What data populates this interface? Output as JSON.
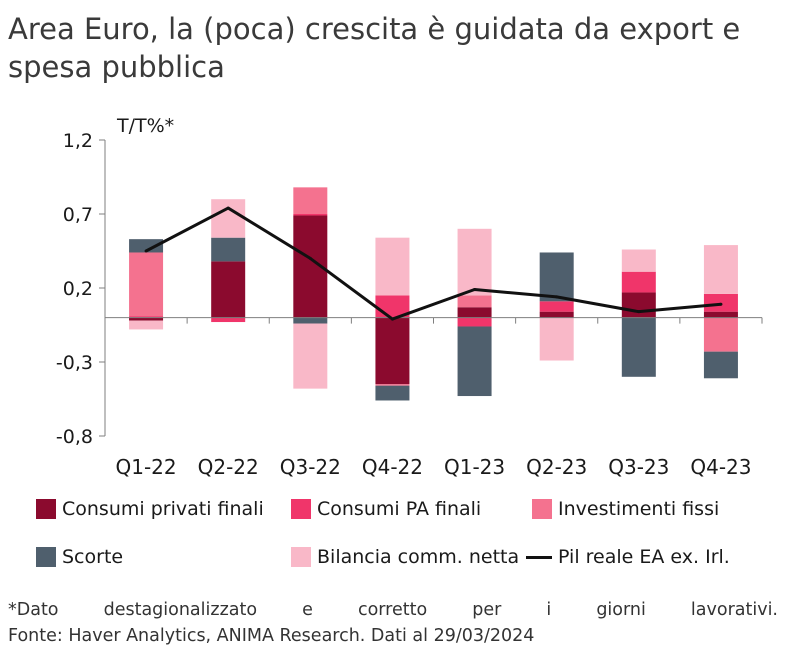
{
  "title_lines": [
    "Area Euro, la (poca) crescita è guidata da export e",
    "spesa pubblica"
  ],
  "chart_data": {
    "type": "bar",
    "stacked": true,
    "ylabel": "T/T%*",
    "ylim": [
      -0.8,
      1.2
    ],
    "yticks": [
      "1,2",
      "0,7",
      "0,2",
      "-0,3",
      "-0,8"
    ],
    "ytick_values": [
      1.2,
      0.7,
      0.2,
      -0.3,
      -0.8
    ],
    "categories": [
      "Q1-22",
      "Q2-22",
      "Q3-22",
      "Q4-22",
      "Q1-23",
      "Q2-23",
      "Q3-23",
      "Q4-23"
    ],
    "series": [
      {
        "name": "Consumi privati finali",
        "color": "#8b0a2e",
        "values": [
          -0.02,
          0.38,
          0.69,
          -0.45,
          0.07,
          0.04,
          0.17,
          0.04
        ]
      },
      {
        "name": "Consumi PA finali",
        "color": "#f0356a",
        "values": [
          0.01,
          -0.03,
          0.01,
          0.15,
          -0.06,
          0.07,
          0.14,
          0.12
        ]
      },
      {
        "name": "Investimenti fissi",
        "color": "#f4728f",
        "values": [
          0.43,
          0.0,
          0.18,
          -0.01,
          0.08,
          0.0,
          0.0,
          -0.23
        ]
      },
      {
        "name": "Scorte",
        "color": "#4f5f6d",
        "values": [
          0.09,
          0.16,
          -0.04,
          -0.1,
          -0.47,
          0.33,
          -0.4,
          -0.18
        ]
      },
      {
        "name": "Bilancia comm. netta",
        "color": "#f9b8c8",
        "values": [
          -0.06,
          0.26,
          -0.44,
          0.39,
          0.45,
          -0.29,
          0.15,
          0.33
        ]
      }
    ],
    "line": {
      "name": "Pil reale EA ex. Irl.",
      "color": "#111111",
      "values": [
        0.45,
        0.74,
        0.4,
        -0.01,
        0.19,
        0.14,
        0.04,
        0.09
      ]
    },
    "legend_position": "bottom"
  },
  "footnote": {
    "line1": "*Dato destagionalizzato e corretto per i giorni lavorativi.",
    "line2": "Fonte: Haver Analytics, ANIMA Research. Dati al 29/03/2024"
  }
}
